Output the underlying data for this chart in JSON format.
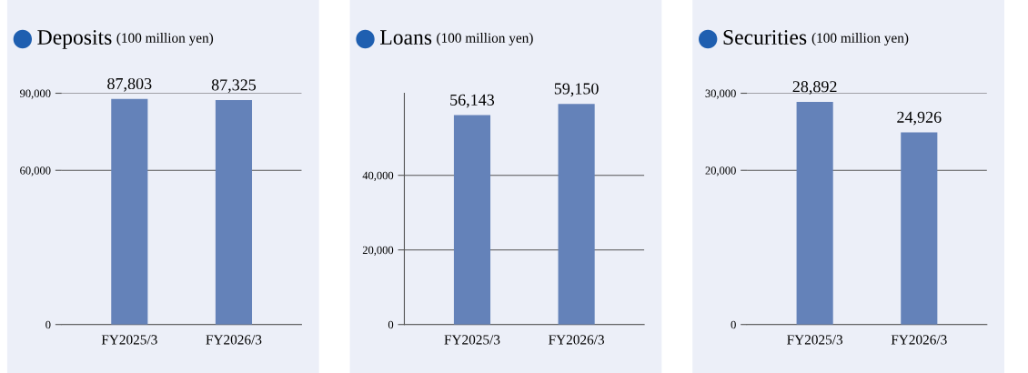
{
  "chart_data": [
    {
      "type": "bar",
      "title": "Deposits",
      "subtitle": "(100 million yen)",
      "categories": [
        "FY2025/3",
        "FY2026/3"
      ],
      "values": [
        87803,
        87325
      ],
      "value_labels": [
        "87,803",
        "87,325"
      ],
      "color": "#6482b9",
      "ylim": [
        0,
        90000
      ],
      "yticks": [
        {
          "value": 0,
          "label": "0"
        },
        {
          "value": 60000,
          "label": "60,000"
        },
        {
          "value": 90000,
          "label": "90,000"
        }
      ],
      "grid": "y"
    },
    {
      "type": "bar",
      "title": "Loans",
      "subtitle": "(100 million yen)",
      "categories": [
        "FY2025/3",
        "FY2026/3"
      ],
      "values": [
        56143,
        59150
      ],
      "value_labels": [
        "56,143",
        "59,150"
      ],
      "color": "#6482b9",
      "ylim": [
        0,
        62000
      ],
      "yticks": [
        {
          "value": 0,
          "label": "0"
        },
        {
          "value": 20000,
          "label": "20,000"
        },
        {
          "value": 40000,
          "label": "40,000"
        }
      ],
      "grid": "y"
    },
    {
      "type": "bar",
      "title": "Securities",
      "subtitle": "(100 million yen)",
      "categories": [
        "FY2025/3",
        "FY2026/3"
      ],
      "values": [
        28892,
        24926
      ],
      "value_labels": [
        "28,892",
        "24,926"
      ],
      "color": "#6482b9",
      "ylim": [
        0,
        30000
      ],
      "yticks": [
        {
          "value": 0,
          "label": "0"
        },
        {
          "value": 20000,
          "label": "20,000"
        },
        {
          "value": 30000,
          "label": "30,000"
        }
      ],
      "grid": "y"
    }
  ]
}
